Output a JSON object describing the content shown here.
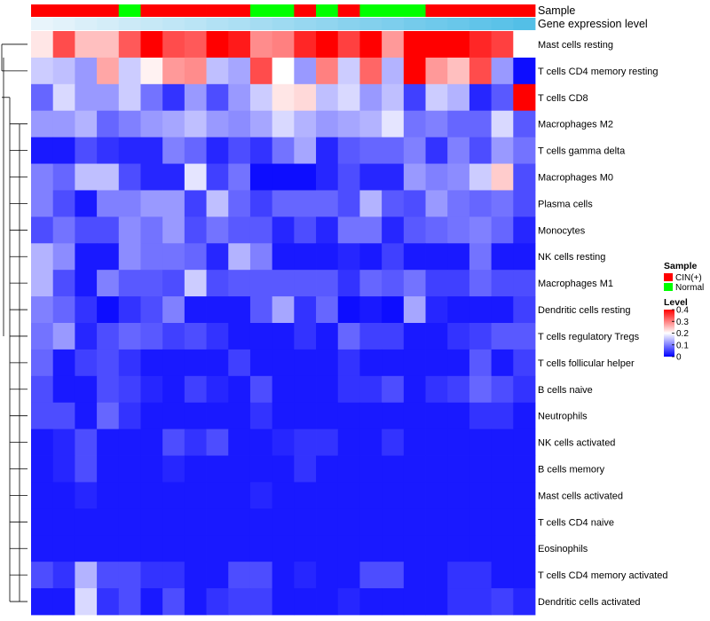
{
  "chart_data": {
    "type": "heatmap",
    "title": "",
    "column_count": 23,
    "annotation_tracks": [
      {
        "name": "Sample",
        "values": [
          "CIN(+)",
          "CIN(+)",
          "CIN(+)",
          "CIN(+)",
          "Normal",
          "CIN(+)",
          "CIN(+)",
          "CIN(+)",
          "CIN(+)",
          "CIN(+)",
          "Normal",
          "Normal",
          "CIN(+)",
          "Normal",
          "CIN(+)",
          "Normal",
          "Normal",
          "Normal",
          "CIN(+)",
          "CIN(+)",
          "CIN(+)",
          "CIN(+)",
          "CIN(+)"
        ]
      },
      {
        "name": "Gene expression level",
        "values": [
          0.0,
          0.04,
          0.09,
          0.13,
          0.18,
          0.22,
          0.26,
          0.3,
          0.35,
          0.39,
          0.43,
          0.48,
          0.52,
          0.56,
          0.61,
          0.65,
          0.69,
          0.74,
          0.78,
          0.82,
          0.87,
          0.91,
          0.96
        ]
      }
    ],
    "rows": [
      {
        "name": "Mast cells resting",
        "values": [
          0.22,
          0.34,
          0.25,
          0.25,
          0.33,
          0.4,
          0.34,
          0.33,
          0.4,
          0.38,
          0.29,
          0.3,
          0.37,
          0.4,
          0.35,
          0.4,
          0.28,
          0.4,
          0.4,
          0.4,
          0.37,
          0.35,
          0.2
        ]
      },
      {
        "name": "T cells CD4 memory resting",
        "values": [
          0.16,
          0.15,
          0.12,
          0.27,
          0.16,
          0.21,
          0.28,
          0.29,
          0.15,
          0.13,
          0.34,
          0.2,
          0.12,
          0.3,
          0.16,
          0.32,
          0.14,
          0.4,
          0.28,
          0.25,
          0.34,
          0.12,
          0.01
        ]
      },
      {
        "name": "T cells CD8",
        "values": [
          0.08,
          0.17,
          0.12,
          0.12,
          0.16,
          0.09,
          0.04,
          0.12,
          0.06,
          0.12,
          0.16,
          0.22,
          0.23,
          0.15,
          0.17,
          0.12,
          0.15,
          0.05,
          0.16,
          0.14,
          0.03,
          0.07,
          0.4
        ]
      },
      {
        "name": "Macrophages M2",
        "values": [
          0.12,
          0.12,
          0.14,
          0.08,
          0.1,
          0.12,
          0.13,
          0.15,
          0.12,
          0.11,
          0.13,
          0.17,
          0.14,
          0.12,
          0.13,
          0.14,
          0.18,
          0.09,
          0.1,
          0.08,
          0.08,
          0.17,
          0.07
        ]
      },
      {
        "name": "T cells gamma delta",
        "values": [
          0.02,
          0.02,
          0.06,
          0.04,
          0.03,
          0.03,
          0.1,
          0.08,
          0.03,
          0.06,
          0.04,
          0.09,
          0.13,
          0.03,
          0.07,
          0.08,
          0.08,
          0.1,
          0.04,
          0.1,
          0.06,
          0.12,
          0.09
        ]
      },
      {
        "name": "Macrophages M0",
        "values": [
          0.1,
          0.08,
          0.15,
          0.15,
          0.06,
          0.03,
          0.03,
          0.18,
          0.05,
          0.09,
          0.01,
          0.01,
          0.01,
          0.03,
          0.06,
          0.03,
          0.03,
          0.12,
          0.1,
          0.11,
          0.16,
          0.24,
          0.06
        ]
      },
      {
        "name": "Plasma cells",
        "values": [
          0.1,
          0.06,
          0.02,
          0.1,
          0.1,
          0.12,
          0.12,
          0.05,
          0.15,
          0.08,
          0.05,
          0.08,
          0.08,
          0.08,
          0.06,
          0.14,
          0.07,
          0.06,
          0.12,
          0.09,
          0.08,
          0.09,
          0.06
        ]
      },
      {
        "name": "Monocytes",
        "values": [
          0.06,
          0.09,
          0.06,
          0.06,
          0.11,
          0.09,
          0.12,
          0.06,
          0.09,
          0.07,
          0.07,
          0.03,
          0.06,
          0.03,
          0.09,
          0.09,
          0.03,
          0.07,
          0.08,
          0.09,
          0.1,
          0.08,
          0.03
        ]
      },
      {
        "name": "NK cells resting",
        "values": [
          0.14,
          0.11,
          0.02,
          0.02,
          0.11,
          0.09,
          0.09,
          0.08,
          0.03,
          0.14,
          0.1,
          0.02,
          0.02,
          0.02,
          0.03,
          0.02,
          0.05,
          0.02,
          0.02,
          0.02,
          0.09,
          0.02,
          0.02
        ]
      },
      {
        "name": "Macrophages M1",
        "values": [
          0.14,
          0.06,
          0.02,
          0.1,
          0.07,
          0.07,
          0.06,
          0.16,
          0.06,
          0.07,
          0.07,
          0.07,
          0.07,
          0.07,
          0.04,
          0.08,
          0.07,
          0.09,
          0.05,
          0.05,
          0.08,
          0.06,
          0.06
        ]
      },
      {
        "name": "Dendritic cells resting",
        "values": [
          0.1,
          0.08,
          0.04,
          0.01,
          0.04,
          0.06,
          0.1,
          0.02,
          0.02,
          0.02,
          0.07,
          0.13,
          0.04,
          0.08,
          0.01,
          0.02,
          0.01,
          0.13,
          0.03,
          0.02,
          0.02,
          0.02,
          0.05
        ]
      },
      {
        "name": "T cells regulatory  Tregs",
        "values": [
          0.09,
          0.12,
          0.03,
          0.06,
          0.08,
          0.07,
          0.05,
          0.06,
          0.04,
          0.02,
          0.02,
          0.02,
          0.04,
          0.02,
          0.08,
          0.05,
          0.05,
          0.02,
          0.02,
          0.04,
          0.05,
          0.07,
          0.07
        ]
      },
      {
        "name": "T cells follicular helper",
        "values": [
          0.08,
          0.02,
          0.05,
          0.06,
          0.04,
          0.02,
          0.02,
          0.02,
          0.02,
          0.05,
          0.02,
          0.02,
          0.02,
          0.02,
          0.04,
          0.02,
          0.02,
          0.02,
          0.02,
          0.02,
          0.07,
          0.02,
          0.05
        ]
      },
      {
        "name": "B cells naive",
        "values": [
          0.06,
          0.02,
          0.02,
          0.06,
          0.05,
          0.03,
          0.02,
          0.05,
          0.03,
          0.02,
          0.06,
          0.02,
          0.02,
          0.02,
          0.04,
          0.04,
          0.06,
          0.02,
          0.04,
          0.05,
          0.08,
          0.06,
          0.04
        ]
      },
      {
        "name": "Neutrophils",
        "values": [
          0.06,
          0.06,
          0.02,
          0.08,
          0.04,
          0.02,
          0.02,
          0.02,
          0.02,
          0.02,
          0.04,
          0.02,
          0.02,
          0.02,
          0.02,
          0.02,
          0.02,
          0.02,
          0.02,
          0.02,
          0.04,
          0.04,
          0.02
        ]
      },
      {
        "name": "NK cells activated",
        "values": [
          0.02,
          0.03,
          0.06,
          0.02,
          0.02,
          0.02,
          0.06,
          0.04,
          0.06,
          0.02,
          0.02,
          0.03,
          0.04,
          0.04,
          0.02,
          0.02,
          0.04,
          0.02,
          0.02,
          0.02,
          0.02,
          0.02,
          0.02
        ]
      },
      {
        "name": "B cells memory",
        "values": [
          0.02,
          0.03,
          0.06,
          0.02,
          0.02,
          0.02,
          0.03,
          0.02,
          0.02,
          0.02,
          0.02,
          0.02,
          0.04,
          0.02,
          0.02,
          0.02,
          0.02,
          0.02,
          0.02,
          0.02,
          0.02,
          0.02,
          0.02
        ]
      },
      {
        "name": "Mast cells activated",
        "values": [
          0.02,
          0.02,
          0.03,
          0.02,
          0.02,
          0.02,
          0.02,
          0.02,
          0.02,
          0.02,
          0.03,
          0.02,
          0.02,
          0.02,
          0.02,
          0.02,
          0.02,
          0.02,
          0.02,
          0.02,
          0.02,
          0.02,
          0.02
        ]
      },
      {
        "name": "T cells CD4 naive",
        "values": [
          0.02,
          0.02,
          0.02,
          0.02,
          0.02,
          0.02,
          0.02,
          0.02,
          0.02,
          0.02,
          0.02,
          0.02,
          0.02,
          0.02,
          0.02,
          0.02,
          0.02,
          0.02,
          0.02,
          0.02,
          0.02,
          0.02,
          0.02
        ]
      },
      {
        "name": "Eosinophils",
        "values": [
          0.02,
          0.02,
          0.02,
          0.02,
          0.02,
          0.02,
          0.02,
          0.02,
          0.02,
          0.02,
          0.02,
          0.02,
          0.02,
          0.02,
          0.02,
          0.02,
          0.02,
          0.02,
          0.02,
          0.02,
          0.02,
          0.02,
          0.02
        ]
      },
      {
        "name": "T cells CD4 memory activated",
        "values": [
          0.06,
          0.04,
          0.14,
          0.06,
          0.06,
          0.04,
          0.04,
          0.02,
          0.02,
          0.06,
          0.06,
          0.02,
          0.03,
          0.02,
          0.02,
          0.06,
          0.06,
          0.02,
          0.02,
          0.04,
          0.04,
          0.02,
          0.02
        ]
      },
      {
        "name": "Dendritic cells activated",
        "values": [
          0.02,
          0.02,
          0.17,
          0.04,
          0.06,
          0.02,
          0.06,
          0.02,
          0.04,
          0.05,
          0.05,
          0.02,
          0.02,
          0.02,
          0.03,
          0.02,
          0.02,
          0.02,
          0.02,
          0.04,
          0.04,
          0.05,
          0.03
        ]
      }
    ],
    "color_scale": {
      "min": 0,
      "max": 0.4,
      "stops": [
        {
          "value": 0.0,
          "color": "#0000ff"
        },
        {
          "value": 0.2,
          "color": "#ffffff"
        },
        {
          "value": 0.4,
          "color": "#ff0000"
        }
      ]
    },
    "legends": [
      {
        "title": "Sample",
        "entries": [
          {
            "label": "CIN(+)",
            "color": "#ff0000"
          },
          {
            "label": "Normal",
            "color": "#00ff00"
          }
        ]
      },
      {
        "title": "Level",
        "ticks": [
          {
            "value": 0.4,
            "label": "0.4"
          },
          {
            "value": 0.3,
            "label": "0.3"
          },
          {
            "value": 0.2,
            "label": "0.2"
          },
          {
            "value": 0.1,
            "label": "0.1"
          },
          {
            "value": 0.0,
            "label": "0"
          }
        ]
      }
    ],
    "gene_expression_colors": {
      "low": "#e8f4fb",
      "high": "#4dbde6"
    },
    "row_dendrogram": true,
    "legend_position": "right"
  }
}
